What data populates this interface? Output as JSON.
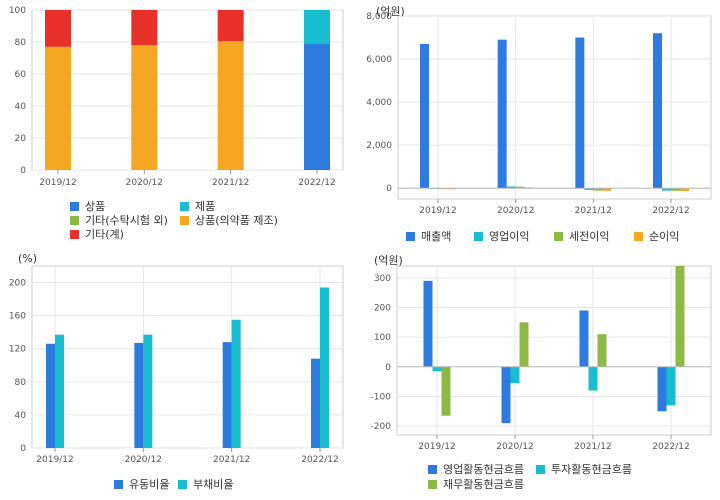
{
  "colors": {
    "blue": "#2e7be0",
    "cyan": "#18bdcf",
    "green": "#8cba45",
    "red": "#e8302a",
    "orange": "#f5a623",
    "grid": "#e6e6e6",
    "axis": "#999999",
    "border": "#cccccc"
  },
  "chart_data": [
    {
      "type": "bar",
      "stacked": true,
      "categories": [
        "2019/12",
        "2020/12",
        "2021/12",
        "2022/12"
      ],
      "ylim": [
        0,
        100
      ],
      "yticks": [
        "0",
        "20",
        "40",
        "60",
        "80",
        "100"
      ],
      "series": [
        {
          "name": "상품",
          "color": "#2e7be0",
          "values": [
            0,
            0,
            0,
            79
          ]
        },
        {
          "name": "제품",
          "color": "#18bdcf",
          "values": [
            0,
            0,
            0,
            21
          ]
        },
        {
          "name": "기타(수탁시험 외)",
          "color": "#8cba45",
          "values": [
            0,
            0,
            0.5,
            0
          ]
        },
        {
          "name": "상품(의약품 제조)",
          "color": "#f5a623",
          "values": [
            77,
            78,
            80,
            0
          ]
        },
        {
          "name": "기타(계)",
          "color": "#e8302a",
          "values": [
            23,
            22,
            19.5,
            0
          ]
        }
      ]
    },
    {
      "type": "bar",
      "unit": "(억원)",
      "categories": [
        "2019/12",
        "2020/12",
        "2021/12",
        "2022/12"
      ],
      "ylim": [
        -500,
        8000
      ],
      "yticks": [
        "0",
        "2,000",
        "4,000",
        "6,000",
        "8,000"
      ],
      "series": [
        {
          "name": "매출액",
          "color": "#2e7be0",
          "values": [
            6700,
            6900,
            7000,
            7200
          ]
        },
        {
          "name": "영업이익",
          "color": "#18bdcf",
          "values": [
            10,
            80,
            -80,
            -110
          ]
        },
        {
          "name": "세전이익",
          "color": "#8cba45",
          "values": [
            5,
            70,
            -110,
            -120
          ]
        },
        {
          "name": "순이익",
          "color": "#f5a623",
          "values": [
            -40,
            40,
            -120,
            -130
          ]
        }
      ]
    },
    {
      "type": "bar",
      "unit": "(%)",
      "categories": [
        "2019/12",
        "2020/12",
        "2021/12",
        "2022/12"
      ],
      "ylim": [
        0,
        220
      ],
      "yticks": [
        "0",
        "40",
        "80",
        "120",
        "160",
        "200"
      ],
      "series": [
        {
          "name": "유동비율",
          "color": "#2e7be0",
          "values": [
            126,
            127,
            128,
            108
          ]
        },
        {
          "name": "부채비율",
          "color": "#18bdcf",
          "values": [
            137,
            137,
            155,
            194
          ]
        }
      ]
    },
    {
      "type": "bar",
      "unit": "(억원)",
      "categories": [
        "2019/12",
        "2020/12",
        "2021/12",
        "2022/12"
      ],
      "ylim": [
        -230,
        340
      ],
      "yticks": [
        "-200",
        "-100",
        "0",
        "100",
        "200",
        "300"
      ],
      "series": [
        {
          "name": "영업활동현금흐름",
          "color": "#2e7be0",
          "values": [
            290,
            -190,
            190,
            -150
          ]
        },
        {
          "name": "투자활동현금흐름",
          "color": "#18bdcf",
          "values": [
            -15,
            -55,
            -80,
            -130
          ]
        },
        {
          "name": "재무활동현금흐름",
          "color": "#8cba45",
          "values": [
            -165,
            150,
            110,
            340
          ]
        }
      ]
    }
  ]
}
